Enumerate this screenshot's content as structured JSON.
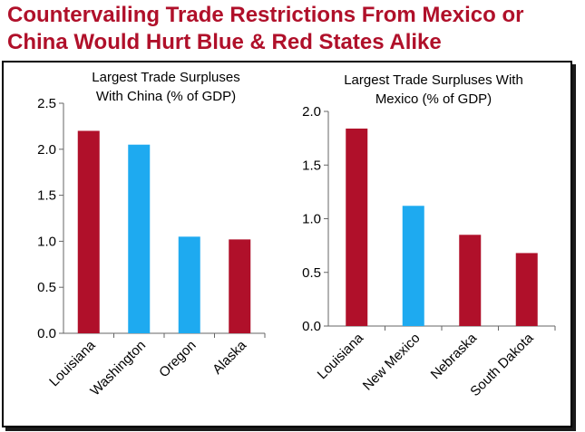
{
  "header": {
    "title_line1": "Countervailing Trade Restrictions From Mexico or",
    "title_line2": "China Would Hurt Blue & Red States Alike"
  },
  "colors": {
    "red": "#b0102a",
    "blue": "#1eaaf0",
    "title": "#b0102a"
  },
  "chart_data": [
    {
      "type": "bar",
      "title_lines": [
        "Largest Trade Surpluses",
        "With China (% of GDP)"
      ],
      "categories": [
        "Louisiana",
        "Washington",
        "Oregon",
        "Alaska"
      ],
      "values": [
        2.2,
        2.05,
        1.05,
        1.02
      ],
      "bar_colors": [
        "red",
        "blue",
        "blue",
        "red"
      ],
      "ylim": [
        0,
        2.5
      ],
      "yticks": [
        "0.0",
        "0.5",
        "1.0",
        "1.5",
        "2.0",
        "2.5"
      ],
      "xlabel": "",
      "ylabel": "",
      "grid": false,
      "legend": "none"
    },
    {
      "type": "bar",
      "title_lines": [
        "Largest Trade Surpluses With",
        "Mexico (% of GDP)"
      ],
      "categories": [
        "Louisiana",
        "New Mexico",
        "Nebraska",
        "South Dakota"
      ],
      "values": [
        1.84,
        1.12,
        0.85,
        0.68
      ],
      "bar_colors": [
        "red",
        "blue",
        "red",
        "red"
      ],
      "ylim": [
        0,
        2.0
      ],
      "yticks": [
        "0.0",
        "0.5",
        "1.0",
        "1.5",
        "2.0"
      ],
      "xlabel": "",
      "ylabel": "",
      "grid": false,
      "legend": "none"
    }
  ]
}
